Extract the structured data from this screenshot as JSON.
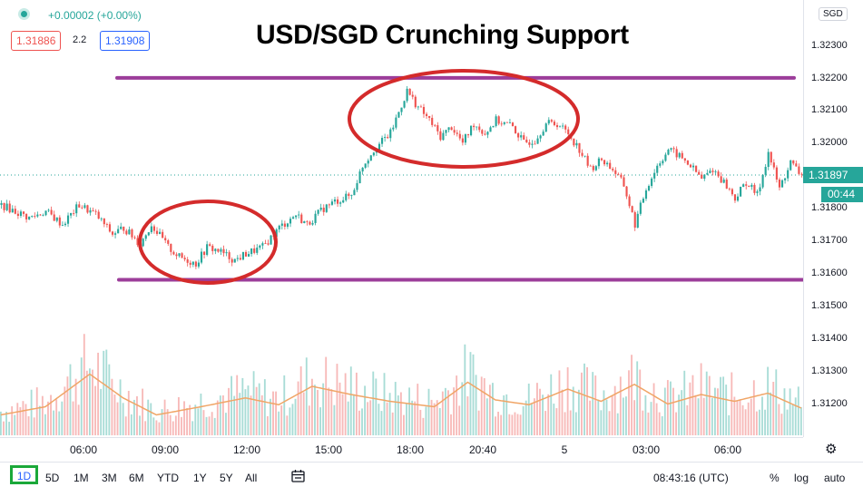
{
  "header": {
    "change": "+0.00002 (+0.00%)",
    "bid": "1.31886",
    "spread": "2.2",
    "ask": "1.31908"
  },
  "chart_data": {
    "type": "candlestick",
    "title": "USD/SGD Crunching Support",
    "currency": "SGD",
    "y_ticks": [
      "1.32300",
      "1.32200",
      "1.32100",
      "1.32000",
      "1.31800",
      "1.31700",
      "1.31600",
      "1.31500",
      "1.31400",
      "1.31300",
      "1.31200"
    ],
    "x_ticks": [
      "06:00",
      "09:00",
      "12:00",
      "15:00",
      "18:00",
      "20:40",
      "5",
      "03:00",
      "06:00"
    ],
    "ylim": [
      1.3112,
      1.3236
    ],
    "current_price": "1.31897",
    "countdown": "00:44",
    "resistance": 1.322,
    "support": 1.3158,
    "price_path": [
      [
        0,
        1.3181
      ],
      [
        10,
        1.3177
      ],
      [
        16,
        1.3179
      ],
      [
        22,
        1.3175
      ],
      [
        28,
        1.3181
      ],
      [
        34,
        1.3178
      ],
      [
        40,
        1.3172
      ],
      [
        44,
        1.3174
      ],
      [
        50,
        1.3169
      ],
      [
        54,
        1.3175
      ],
      [
        60,
        1.3168
      ],
      [
        64,
        1.3165
      ],
      [
        70,
        1.3163
      ],
      [
        74,
        1.3168
      ],
      [
        78,
        1.3167
      ],
      [
        84,
        1.3164
      ],
      [
        88,
        1.3166
      ],
      [
        94,
        1.3168
      ],
      [
        100,
        1.3174
      ],
      [
        106,
        1.3178
      ],
      [
        110,
        1.3175
      ],
      [
        116,
        1.318
      ],
      [
        120,
        1.3182
      ],
      [
        126,
        1.3184
      ],
      [
        130,
        1.3193
      ],
      [
        134,
        1.3198
      ],
      [
        140,
        1.3203
      ],
      [
        146,
        1.3216
      ],
      [
        150,
        1.3211
      ],
      [
        154,
        1.3207
      ],
      [
        158,
        1.3202
      ],
      [
        162,
        1.3205
      ],
      [
        166,
        1.32
      ],
      [
        170,
        1.3206
      ],
      [
        174,
        1.3203
      ],
      [
        178,
        1.3207
      ],
      [
        184,
        1.3205
      ],
      [
        188,
        1.32
      ],
      [
        192,
        1.3201
      ],
      [
        196,
        1.3206
      ],
      [
        200,
        1.3206
      ],
      [
        204,
        1.3203
      ],
      [
        208,
        1.3198
      ],
      [
        212,
        1.3192
      ],
      [
        216,
        1.3195
      ],
      [
        220,
        1.3192
      ],
      [
        224,
        1.3187
      ],
      [
        228,
        1.3175
      ],
      [
        232,
        1.3186
      ],
      [
        236,
        1.3193
      ],
      [
        240,
        1.3198
      ],
      [
        244,
        1.3196
      ],
      [
        248,
        1.3193
      ],
      [
        252,
        1.3189
      ],
      [
        256,
        1.3192
      ],
      [
        260,
        1.3188
      ],
      [
        264,
        1.3183
      ],
      [
        268,
        1.3188
      ],
      [
        272,
        1.3184
      ],
      [
        276,
        1.3197
      ],
      [
        280,
        1.3186
      ],
      [
        284,
        1.3194
      ],
      [
        288,
        1.319
      ]
    ],
    "volume_path": [
      [
        0,
        0.3
      ],
      [
        16,
        0.42
      ],
      [
        32,
        0.9
      ],
      [
        44,
        0.55
      ],
      [
        56,
        0.3
      ],
      [
        72,
        0.42
      ],
      [
        88,
        0.55
      ],
      [
        100,
        0.45
      ],
      [
        112,
        0.72
      ],
      [
        126,
        0.6
      ],
      [
        140,
        0.5
      ],
      [
        156,
        0.42
      ],
      [
        168,
        0.78
      ],
      [
        178,
        0.52
      ],
      [
        190,
        0.45
      ],
      [
        204,
        0.68
      ],
      [
        216,
        0.5
      ],
      [
        228,
        0.75
      ],
      [
        240,
        0.46
      ],
      [
        252,
        0.6
      ],
      [
        264,
        0.5
      ],
      [
        276,
        0.62
      ],
      [
        288,
        0.4
      ]
    ]
  },
  "time_axis": {
    "labels": [
      "06:00",
      "09:00",
      "12:00",
      "15:00",
      "18:00",
      "20:40",
      "5",
      "03:00",
      "06:00"
    ]
  },
  "bottom_bar": {
    "ranges": [
      "1D",
      "5D",
      "1M",
      "3M",
      "6M",
      "YTD",
      "1Y",
      "5Y",
      "All"
    ],
    "clock": "08:43:16 (UTC)",
    "percent": "%",
    "log": "log",
    "auto": "auto"
  },
  "colors": {
    "up": "#26a69a",
    "down": "#ef5350",
    "level": "#9c3d9a",
    "ellipse": "#d42b2b",
    "accent": "#2962ff"
  }
}
